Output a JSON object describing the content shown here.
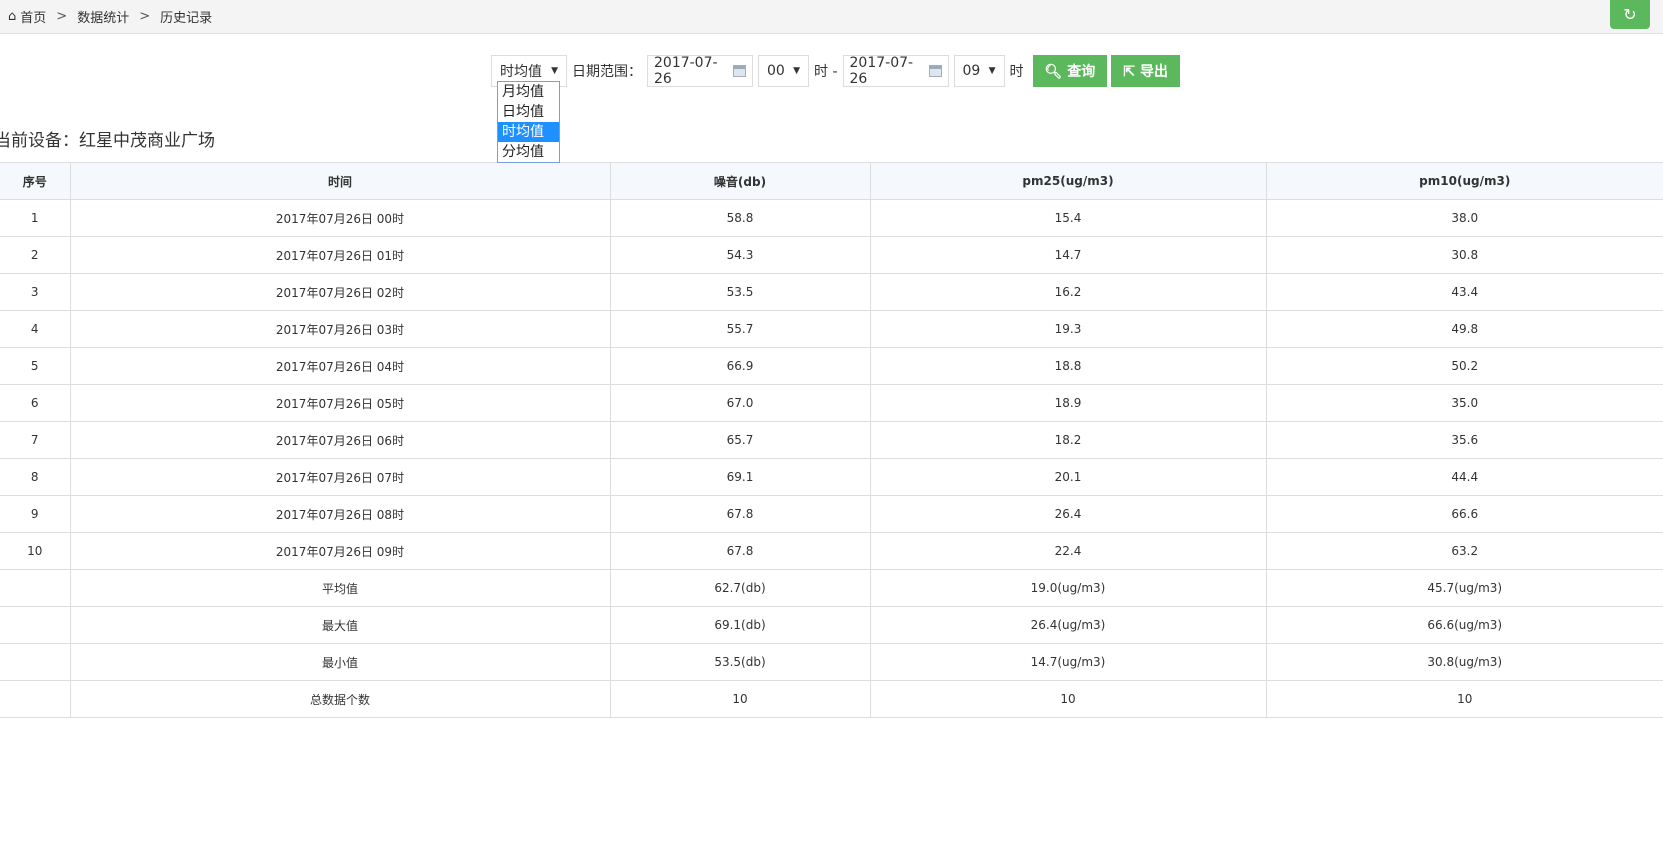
{
  "breadcrumb": [
    "首页",
    "数据统计",
    "历史记录"
  ],
  "breadcrumb_sep": ">",
  "toolbar": {
    "mode": "时均值",
    "date_label": "日期范围：",
    "start_date": "2017-07-26",
    "start_hour": "00",
    "hour_unit": "时",
    "dash": "时 -",
    "end_date": "2017-07-26",
    "end_hour": "09",
    "query": "查询",
    "export": "导出"
  },
  "mode_options": [
    "月均值",
    "日均值",
    "时均值",
    "分均值"
  ],
  "device": "当前设备：红星中茂商业广场",
  "table": {
    "headers": [
      "序号",
      "时间",
      "噪音(db)",
      "pm25(ug/m3)",
      "pm10(ug/m3)"
    ],
    "rows": [
      [
        "1",
        "2017年07月26日 00时",
        "58.8",
        "15.4",
        "38.0"
      ],
      [
        "2",
        "2017年07月26日 01时",
        "54.3",
        "14.7",
        "30.8"
      ],
      [
        "3",
        "2017年07月26日 02时",
        "53.5",
        "16.2",
        "43.4"
      ],
      [
        "4",
        "2017年07月26日 03时",
        "55.7",
        "19.3",
        "49.8"
      ],
      [
        "5",
        "2017年07月26日 04时",
        "66.9",
        "18.8",
        "50.2"
      ],
      [
        "6",
        "2017年07月26日 05时",
        "67.0",
        "18.9",
        "35.0"
      ],
      [
        "7",
        "2017年07月26日 06时",
        "65.7",
        "18.2",
        "35.6"
      ],
      [
        "8",
        "2017年07月26日 07时",
        "69.1",
        "20.1",
        "44.4"
      ],
      [
        "9",
        "2017年07月26日 08时",
        "67.8",
        "26.4",
        "66.6"
      ],
      [
        "10",
        "2017年07月26日 09时",
        "67.8",
        "22.4",
        "63.2"
      ],
      [
        "",
        "平均值",
        "62.7(db)",
        "19.0(ug/m3)",
        "45.7(ug/m3)"
      ],
      [
        "",
        "最大值",
        "69.1(db)",
        "26.4(ug/m3)",
        "66.6(ug/m3)"
      ],
      [
        "",
        "最小值",
        "53.5(db)",
        "14.7(ug/m3)",
        "30.8(ug/m3)"
      ],
      [
        "",
        "总数据个数",
        "10",
        "10",
        "10"
      ]
    ]
  },
  "colors": {
    "accent": "#5cb85c",
    "selected": "#1e90ff",
    "header_bg": "#f5f9fd"
  }
}
